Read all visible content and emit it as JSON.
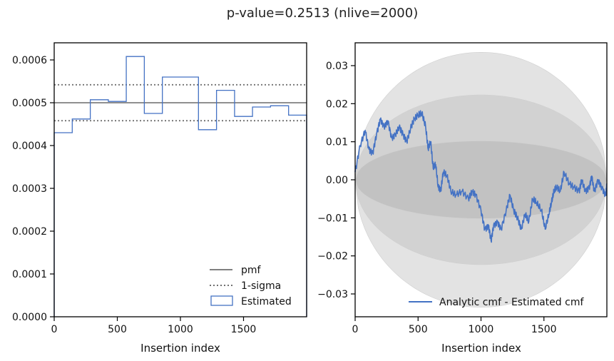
{
  "figure": {
    "title": "p-value=0.2513 (nlive=2000)"
  },
  "chart_data": [
    {
      "type": "step",
      "xlabel": "Insertion index",
      "ylabel": "",
      "xlim": [
        0,
        2000
      ],
      "ylim": [
        0,
        0.00064
      ],
      "xticks": [
        0,
        500,
        1000,
        1500
      ],
      "xtick_labels": [
        "0",
        "500",
        "1000",
        "1500"
      ],
      "yticks": [
        0,
        0.0001,
        0.0002,
        0.0003,
        0.0004,
        0.0005,
        0.0006
      ],
      "ytick_labels": [
        "0.0000",
        "0.0001",
        "0.0002",
        "0.0003",
        "0.0004",
        "0.0005",
        "0.0006"
      ],
      "pmf": 0.0005,
      "sigma_lower": 0.000458,
      "sigma_upper": 0.000542,
      "bin_edges": [
        0,
        143,
        286,
        429,
        571,
        714,
        857,
        1000,
        1143,
        1286,
        1429,
        1571,
        1714,
        1857,
        2000
      ],
      "estimated": [
        0.00043,
        0.000462,
        0.000507,
        0.000503,
        0.000608,
        0.000475,
        0.00056,
        0.00056,
        0.000437,
        0.000529,
        0.000468,
        0.00049,
        0.000493,
        0.000471
      ],
      "legend": {
        "position": "lower-right",
        "entries": [
          "pmf",
          "1-sigma",
          "Estimated"
        ]
      },
      "colors": {
        "estimated": "#4472c4",
        "pmf": "#808080",
        "sigma": "#707070"
      }
    },
    {
      "type": "line",
      "xlabel": "Insertion index",
      "ylabel": "",
      "xlim": [
        0,
        2000
      ],
      "ylim": [
        -0.036,
        0.036
      ],
      "xticks": [
        0,
        500,
        1000,
        1500
      ],
      "xtick_labels": [
        "0",
        "500",
        "1000",
        "1500"
      ],
      "yticks": [
        -0.03,
        -0.02,
        -0.01,
        0.0,
        0.01,
        0.02,
        0.03
      ],
      "ytick_labels": [
        "−0.03",
        "−0.02",
        "−0.01",
        "0.00",
        "0.01",
        "0.02",
        "0.03"
      ],
      "bands": [
        {
          "sigma": 3,
          "amplitude": 0.0335,
          "color": "#e3e3e3"
        },
        {
          "sigma": 2,
          "amplitude": 0.0223,
          "color": "#d2d2d2"
        },
        {
          "sigma": 1,
          "amplitude": 0.0102,
          "color": "#c2c2c2"
        }
      ],
      "series": [
        {
          "name": "Analytic cmf - Estimated cmf",
          "x": [
            0,
            40,
            80,
            110,
            140,
            170,
            200,
            230,
            260,
            290,
            320,
            350,
            380,
            410,
            440,
            470,
            500,
            530,
            560,
            580,
            600,
            620,
            640,
            660,
            680,
            700,
            730,
            760,
            800,
            850,
            900,
            930,
            960,
            1000,
            1030,
            1060,
            1080,
            1100,
            1130,
            1160,
            1200,
            1230,
            1260,
            1290,
            1320,
            1350,
            1380,
            1410,
            1440,
            1480,
            1510,
            1540,
            1560,
            1580,
            1600,
            1630,
            1660,
            1700,
            1740,
            1780,
            1800,
            1830,
            1860,
            1880,
            1900,
            1930,
            1960,
            1990,
            2000
          ],
          "y": [
            0.002,
            0.009,
            0.013,
            0.008,
            0.007,
            0.012,
            0.016,
            0.014,
            0.0155,
            0.011,
            0.012,
            0.014,
            0.012,
            0.01,
            0.0135,
            0.016,
            0.017,
            0.0175,
            0.014,
            0.008,
            0.01,
            0.003,
            0.004,
            -0.002,
            -0.003,
            0.002,
            0.001,
            -0.003,
            -0.004,
            -0.003,
            -0.005,
            -0.003,
            -0.004,
            -0.008,
            -0.013,
            -0.012,
            -0.016,
            -0.012,
            -0.011,
            -0.013,
            -0.008,
            -0.004,
            -0.008,
            -0.01,
            -0.013,
            -0.009,
            -0.011,
            -0.005,
            -0.006,
            -0.008,
            -0.013,
            -0.009,
            -0.006,
            -0.003,
            -0.002,
            -0.003,
            0.002,
            -0.001,
            -0.002,
            -0.003,
            0.0,
            -0.003,
            -0.002,
            0.001,
            -0.003,
            0.0,
            -0.002,
            -0.004,
            -0.001
          ],
          "color": "#4472c4"
        }
      ],
      "legend": {
        "position": "lower-right",
        "entries": [
          "Analytic cmf - Estimated cmf"
        ]
      }
    }
  ]
}
